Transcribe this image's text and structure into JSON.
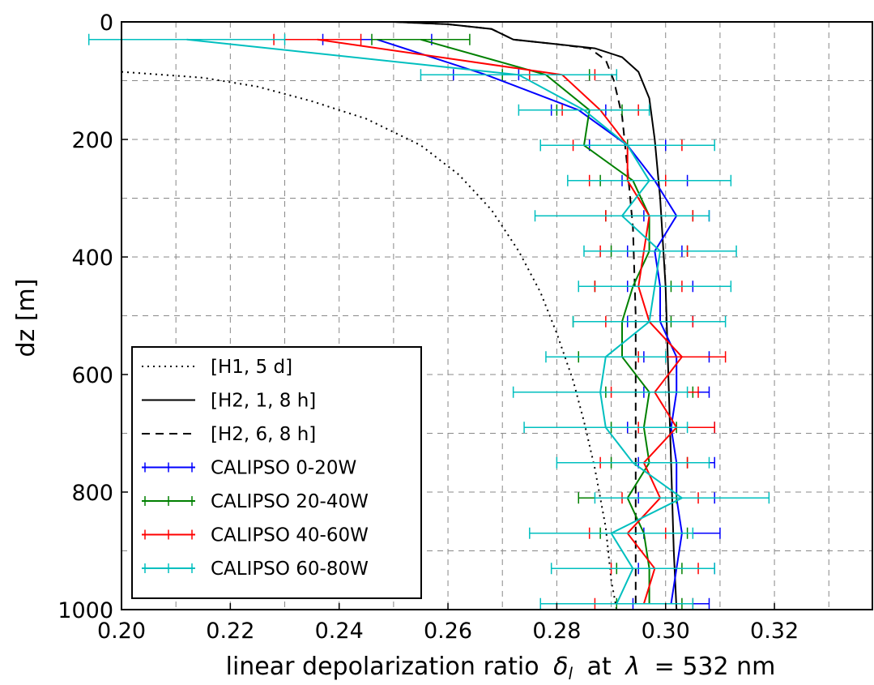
{
  "chart_data": {
    "type": "line",
    "xlabel": "linear depolarization ratio",
    "xlabel_symbol": "δ",
    "xlabel_symbol_sub": "l",
    "xlabel_at": "at",
    "xlabel_lambda": "λ",
    "xlabel_tail": "= 532 nm",
    "ylabel": "dz [m]",
    "xlim": [
      0.2,
      0.338
    ],
    "ylim": [
      1000,
      0
    ],
    "y_inverted": true,
    "grid": true,
    "legend_position": "lower-left",
    "x_ticks": [
      "0.20",
      "0.22",
      "0.24",
      "0.26",
      "0.28",
      "0.30",
      "0.32"
    ],
    "x_tick_values": [
      0.2,
      0.22,
      0.24,
      0.26,
      0.28,
      0.3,
      0.32
    ],
    "x_minor_grid": [
      0.21,
      0.23,
      0.25,
      0.27,
      0.29,
      0.31,
      0.33
    ],
    "y_ticks": [
      "0",
      "200",
      "400",
      "600",
      "800",
      "1000"
    ],
    "y_tick_values": [
      0,
      200,
      400,
      600,
      800,
      1000
    ],
    "y_minor_grid": [
      100,
      300,
      500,
      700,
      900
    ],
    "model_series": [
      {
        "name": "[H1, 5 d]",
        "color": "#000000",
        "dash": "dotted",
        "points": [
          [
            0.2,
            85
          ],
          [
            0.215,
            95
          ],
          [
            0.225,
            110
          ],
          [
            0.235,
            135
          ],
          [
            0.245,
            165
          ],
          [
            0.255,
            210
          ],
          [
            0.262,
            260
          ],
          [
            0.268,
            320
          ],
          [
            0.273,
            390
          ],
          [
            0.277,
            460
          ],
          [
            0.28,
            530
          ],
          [
            0.283,
            610
          ],
          [
            0.285,
            680
          ],
          [
            0.287,
            760
          ],
          [
            0.289,
            860
          ],
          [
            0.29,
            950
          ],
          [
            0.291,
            1000
          ]
        ]
      },
      {
        "name": "[H2, 1, 8 h]",
        "color": "#000000",
        "dash": "solid",
        "points": [
          [
            0.25,
            0
          ],
          [
            0.26,
            4
          ],
          [
            0.268,
            12
          ],
          [
            0.272,
            30
          ],
          [
            0.28,
            38
          ],
          [
            0.287,
            45
          ],
          [
            0.292,
            60
          ],
          [
            0.295,
            85
          ],
          [
            0.297,
            130
          ],
          [
            0.298,
            200
          ],
          [
            0.299,
            300
          ],
          [
            0.3,
            450
          ],
          [
            0.3005,
            600
          ],
          [
            0.301,
            750
          ],
          [
            0.3015,
            900
          ],
          [
            0.302,
            1000
          ]
        ]
      },
      {
        "name": "[H2, 6, 8 h]",
        "color": "#000000",
        "dash": "dashed",
        "points": [
          [
            0.25,
            0
          ],
          [
            0.26,
            4
          ],
          [
            0.268,
            12
          ],
          [
            0.272,
            30
          ],
          [
            0.28,
            38
          ],
          [
            0.286,
            45
          ],
          [
            0.289,
            65
          ],
          [
            0.2905,
            100
          ],
          [
            0.292,
            160
          ],
          [
            0.293,
            250
          ],
          [
            0.294,
            350
          ],
          [
            0.2945,
            500
          ],
          [
            0.2945,
            700
          ],
          [
            0.2945,
            1000
          ]
        ]
      }
    ],
    "calipso_depths": [
      30,
      90,
      150,
      210,
      270,
      330,
      390,
      450,
      510,
      570,
      630,
      690,
      750,
      810,
      870,
      930,
      990
    ],
    "calipso_series": [
      {
        "name": "CALIPSO 0-20W",
        "color": "#0000ff",
        "x": [
          0.247,
          0.267,
          0.284,
          0.293,
          0.298,
          0.302,
          0.298,
          0.299,
          0.299,
          0.302,
          0.302,
          0.301,
          0.302,
          0.302,
          0.303,
          0.302,
          0.301
        ],
        "err": [
          0.01,
          0.006,
          0.005,
          0.007,
          0.006,
          0.006,
          0.005,
          0.006,
          0.006,
          0.006,
          0.006,
          0.008,
          0.007,
          0.007,
          0.007,
          0.007,
          0.007
        ]
      },
      {
        "name": "CALIPSO 20-40W",
        "color": "#008000",
        "x": [
          0.255,
          0.278,
          0.286,
          0.285,
          0.294,
          0.297,
          0.297,
          0.294,
          0.292,
          0.292,
          0.297,
          0.296,
          0.297,
          0.293,
          0.296,
          0.297,
          0.297
        ],
        "err": [
          0.009,
          0.008,
          0.006,
          0.008,
          0.006,
          0.008,
          0.007,
          0.007,
          0.009,
          0.008,
          0.008,
          0.006,
          0.007,
          0.009,
          0.008,
          0.006,
          0.006
        ]
      },
      {
        "name": "CALIPSO 40-60W",
        "color": "#ff0000",
        "x": [
          0.236,
          0.281,
          0.288,
          0.293,
          0.293,
          0.297,
          0.296,
          0.295,
          0.297,
          0.303,
          0.298,
          0.302,
          0.296,
          0.299,
          0.293,
          0.298,
          0.296
        ],
        "err": [
          0.008,
          0.006,
          0.007,
          0.01,
          0.007,
          0.008,
          0.008,
          0.008,
          0.008,
          0.008,
          0.008,
          0.007,
          0.008,
          0.007,
          0.007,
          0.008,
          0.009
        ]
      },
      {
        "name": "CALIPSO 60-80W",
        "color": "#00bfbf",
        "x": [
          0.212,
          0.273,
          0.285,
          0.293,
          0.297,
          0.292,
          0.299,
          0.298,
          0.297,
          0.289,
          0.288,
          0.289,
          0.294,
          0.303,
          0.29,
          0.294,
          0.291
        ],
        "err": [
          0.018,
          0.018,
          0.012,
          0.016,
          0.015,
          0.016,
          0.014,
          0.014,
          0.014,
          0.011,
          0.016,
          0.015,
          0.014,
          0.016,
          0.015,
          0.015,
          0.014
        ]
      }
    ]
  }
}
